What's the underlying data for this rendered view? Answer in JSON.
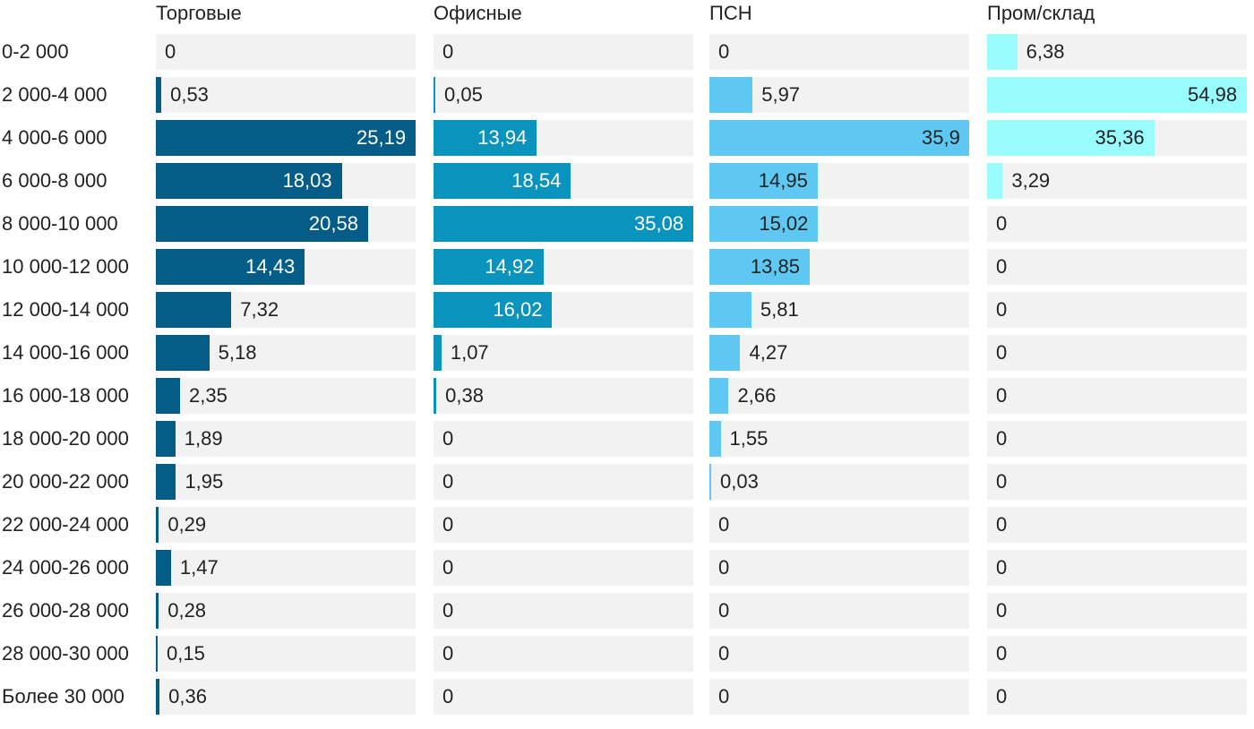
{
  "chart_data": {
    "type": "bar",
    "orientation": "horizontal",
    "layout": "small-multiples",
    "categories": [
      "0-2 000",
      "2 000-4 000",
      "4 000-6 000",
      "6 000-8 000",
      "8 000-10 000",
      "10 000-12 000",
      "12 000-14 000",
      "14 000-16 000",
      "16 000-18 000",
      "18 000-20 000",
      "20 000-22 000",
      "22 000-24 000",
      "24 000-26 000",
      "26 000-28 000",
      "28 000-30 000",
      "Более 30 000"
    ],
    "series": [
      {
        "name": "Торговые",
        "color": "#045d87",
        "label_color": "#ffffff",
        "values": [
          0,
          0.53,
          25.19,
          18.03,
          20.58,
          14.43,
          7.32,
          5.18,
          2.35,
          1.89,
          1.95,
          0.29,
          1.47,
          0.28,
          0.15,
          0.36
        ],
        "labels": [
          "0",
          "0,53",
          "25,19",
          "18,03",
          "20,58",
          "14,43",
          "7,32",
          "5,18",
          "2,35",
          "1,89",
          "1,95",
          "0,29",
          "1,47",
          "0,28",
          "0,15",
          "0,36"
        ]
      },
      {
        "name": "Офисные",
        "color": "#0a93bd",
        "label_color": "#ffffff",
        "values": [
          0,
          0.05,
          13.94,
          18.54,
          35.08,
          14.92,
          16.02,
          1.07,
          0.38,
          0,
          0,
          0,
          0,
          0,
          0,
          0
        ],
        "labels": [
          "0",
          "0,05",
          "13,94",
          "18,54",
          "35,08",
          "14,92",
          "16,02",
          "1,07",
          "0,38",
          "0",
          "0",
          "0",
          "0",
          "0",
          "0",
          "0"
        ]
      },
      {
        "name": "ПСН",
        "color": "#5ec8f2",
        "label_color": "#222222",
        "values": [
          0,
          5.97,
          35.9,
          14.95,
          15.02,
          13.85,
          5.81,
          4.27,
          2.66,
          1.55,
          0.03,
          0,
          0,
          0,
          0,
          0
        ],
        "labels": [
          "0",
          "5,97",
          "35,9",
          "14,95",
          "15,02",
          "13,85",
          "5,81",
          "4,27",
          "2,66",
          "1,55",
          "0,03",
          "0",
          "0",
          "0",
          "0",
          "0"
        ]
      },
      {
        "name": "Пром/склад",
        "color": "#99fcfd",
        "label_color": "#222222",
        "values": [
          6.38,
          54.98,
          35.36,
          3.29,
          0,
          0,
          0,
          0,
          0,
          0,
          0,
          0,
          0,
          0,
          0,
          0
        ],
        "labels": [
          "6,38",
          "54,98",
          "35,36",
          "3,29",
          "0",
          "0",
          "0",
          "0",
          "0",
          "0",
          "0",
          "0",
          "0",
          "0",
          "0",
          "0"
        ]
      }
    ],
    "track_color": "#f2f2f2",
    "grid": false,
    "legend": "none"
  }
}
